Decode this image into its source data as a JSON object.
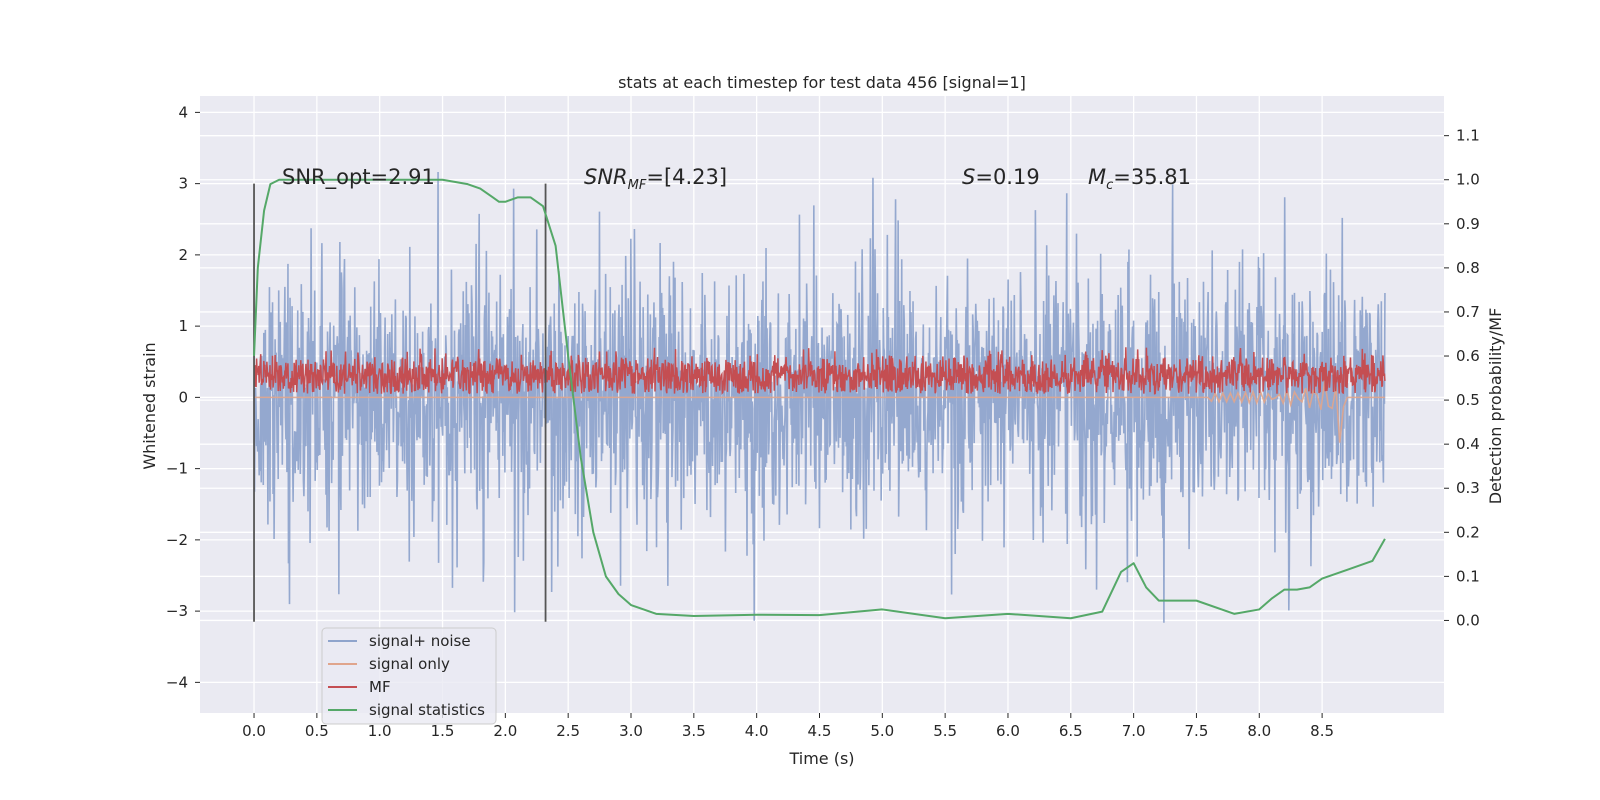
{
  "chart_data": {
    "type": "line",
    "title": "stats at each timestep for test data 456 [signal=1]",
    "xlabel": "Time (s)",
    "ylabel": "Whitened strain",
    "y2label": "Detection probability/MF",
    "xlim": [
      -0.43,
      9.47
    ],
    "ylim": [
      -4.43,
      4.23
    ],
    "y2lim": [
      -0.21,
      1.19
    ],
    "xticks": [
      "0.0",
      "0.5",
      "1.0",
      "1.5",
      "2.0",
      "2.5",
      "3.0",
      "3.5",
      "4.0",
      "4.5",
      "5.0",
      "5.5",
      "6.0",
      "6.5",
      "7.0",
      "7.5",
      "8.0",
      "8.5"
    ],
    "yticks": [
      "4",
      "3",
      "2",
      "1",
      "0",
      "−1",
      "−2",
      "−3",
      "−4"
    ],
    "y2ticks": [
      "1.1",
      "1.0",
      "0.9",
      "0.8",
      "0.7",
      "0.6",
      "0.5",
      "0.4",
      "0.3",
      "0.2",
      "0.1",
      "0.0"
    ],
    "grid": true,
    "legend_position": "lower-left",
    "annotations": {
      "snr_opt": "SNR_opt=2.91",
      "snr_mf_sym": "SNR",
      "snr_mf_sub": "MF",
      "snr_mf_val": "=[4.23]",
      "s_sym": "S",
      "s_val": "=0.19",
      "mc_sym": "M",
      "mc_sub": "c",
      "mc_val": "=35.81"
    },
    "vertical_markers_x": [
      0.0,
      2.32
    ],
    "series": [
      {
        "name": "signal+ noise",
        "color": "#8fa4cc",
        "axis": "left",
        "description": "white noise, std approx 1.0, x from 0 to 9"
      },
      {
        "name": "signal only",
        "color": "#e0a58c",
        "axis": "left",
        "description": "chirp near x=8.3 to 8.65, peak -0.75"
      },
      {
        "name": "MF",
        "color": "#c44e52",
        "axis": "left",
        "description": "noisy band between 0.05 and 0.6, mean 0.3"
      },
      {
        "name": "signal statistics",
        "color": "#55a868",
        "axis": "right",
        "x": [
          0.0,
          0.03,
          0.08,
          0.13,
          0.2,
          0.3,
          0.5,
          1.0,
          1.5,
          1.7,
          1.8,
          1.9,
          1.95,
          2.0,
          2.1,
          2.2,
          2.3,
          2.4,
          2.5,
          2.6,
          2.7,
          2.8,
          2.9,
          3.0,
          3.2,
          3.5,
          4.0,
          4.5,
          5.0,
          5.5,
          6.0,
          6.5,
          6.75,
          6.9,
          7.0,
          7.1,
          7.2,
          7.5,
          7.8,
          8.0,
          8.1,
          8.2,
          8.3,
          8.4,
          8.5,
          8.7,
          8.9,
          9.0
        ],
        "values": [
          0.6,
          0.8,
          0.93,
          0.99,
          1.0,
          1.0,
          1.0,
          1.0,
          1.0,
          0.99,
          0.98,
          0.96,
          0.95,
          0.95,
          0.96,
          0.96,
          0.94,
          0.85,
          0.6,
          0.37,
          0.2,
          0.1,
          0.06,
          0.035,
          0.015,
          0.01,
          0.013,
          0.012,
          0.025,
          0.005,
          0.015,
          0.005,
          0.02,
          0.11,
          0.13,
          0.075,
          0.045,
          0.045,
          0.015,
          0.025,
          0.05,
          0.07,
          0.07,
          0.075,
          0.095,
          0.115,
          0.135,
          0.185
        ]
      }
    ]
  }
}
